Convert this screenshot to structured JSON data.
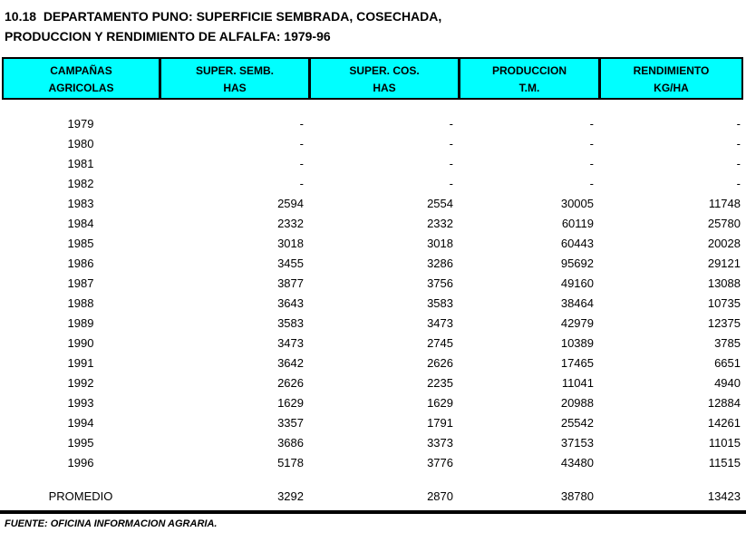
{
  "title": {
    "line1": "10.18  DEPARTAMENTO PUNO: SUPERFICIE SEMBRADA, COSECHADA,",
    "line2": "PRODUCCION Y RENDIMIENTO DE ALFALFA: 1979-96"
  },
  "table": {
    "header_bg": "#00FFFF",
    "header_border": "#000000",
    "columns": [
      {
        "line1": "CAMPAÑAS",
        "line2": "AGRICOLAS"
      },
      {
        "line1": "SUPER. SEMB.",
        "line2": "HAS"
      },
      {
        "line1": "SUPER. COS.",
        "line2": "HAS"
      },
      {
        "line1": "PRODUCCION",
        "line2": "T.M."
      },
      {
        "line1": "RENDIMIENTO",
        "line2": "KG/HA"
      }
    ],
    "rows": [
      {
        "year": "1979",
        "semb": "-",
        "cos": "-",
        "prod": "-",
        "rend": "-"
      },
      {
        "year": "1980",
        "semb": "-",
        "cos": "-",
        "prod": "-",
        "rend": "-"
      },
      {
        "year": "1981",
        "semb": "-",
        "cos": "-",
        "prod": "-",
        "rend": "-"
      },
      {
        "year": "1982",
        "semb": "-",
        "cos": "-",
        "prod": "-",
        "rend": "-"
      },
      {
        "year": "1983",
        "semb": "2594",
        "cos": "2554",
        "prod": "30005",
        "rend": "11748"
      },
      {
        "year": "1984",
        "semb": "2332",
        "cos": "2332",
        "prod": "60119",
        "rend": "25780"
      },
      {
        "year": "1985",
        "semb": "3018",
        "cos": "3018",
        "prod": "60443",
        "rend": "20028"
      },
      {
        "year": "1986",
        "semb": "3455",
        "cos": "3286",
        "prod": "95692",
        "rend": "29121"
      },
      {
        "year": "1987",
        "semb": "3877",
        "cos": "3756",
        "prod": "49160",
        "rend": "13088"
      },
      {
        "year": "1988",
        "semb": "3643",
        "cos": "3583",
        "prod": "38464",
        "rend": "10735"
      },
      {
        "year": "1989",
        "semb": "3583",
        "cos": "3473",
        "prod": "42979",
        "rend": "12375"
      },
      {
        "year": "1990",
        "semb": "3473",
        "cos": "2745",
        "prod": "10389",
        "rend": "3785"
      },
      {
        "year": "1991",
        "semb": "3642",
        "cos": "2626",
        "prod": "17465",
        "rend": "6651"
      },
      {
        "year": "1992",
        "semb": "2626",
        "cos": "2235",
        "prod": "11041",
        "rend": "4940"
      },
      {
        "year": "1993",
        "semb": "1629",
        "cos": "1629",
        "prod": "20988",
        "rend": "12884"
      },
      {
        "year": "1994",
        "semb": "3357",
        "cos": "1791",
        "prod": "25542",
        "rend": "14261"
      },
      {
        "year": "1995",
        "semb": "3686",
        "cos": "3373",
        "prod": "37153",
        "rend": "11015"
      },
      {
        "year": "1996",
        "semb": "5178",
        "cos": "3776",
        "prod": "43480",
        "rend": "11515"
      }
    ],
    "summary": {
      "label": "PROMEDIO",
      "semb": "3292",
      "cos": "2870",
      "prod": "38780",
      "rend": "13423"
    }
  },
  "footer": {
    "source": "FUENTE: OFICINA INFORMACION AGRARIA."
  }
}
